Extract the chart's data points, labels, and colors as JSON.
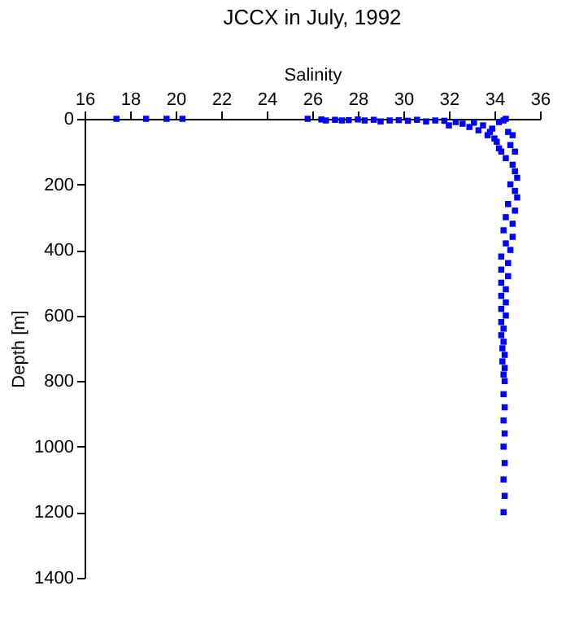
{
  "chart_data": {
    "type": "scatter",
    "title": "JCCX in July, 1992",
    "xlabel": "Salinity",
    "ylabel": "Depth [m]",
    "xlim": [
      16,
      36
    ],
    "xticks": [
      16,
      18,
      20,
      22,
      24,
      26,
      28,
      30,
      32,
      34,
      36
    ],
    "ylim": [
      1400,
      0
    ],
    "yticks": [
      0,
      200,
      400,
      600,
      800,
      1000,
      1200,
      1400
    ],
    "grid": false,
    "marker": "square",
    "series": [
      {
        "color": "#0000ff",
        "x": [
          17.4,
          18.7,
          19.6,
          20.3,
          25.8,
          26.4,
          26.6,
          27.0,
          27.3,
          27.6,
          28.0,
          28.3,
          28.7,
          29.0,
          29.4,
          29.8,
          30.2,
          30.6,
          31.0,
          31.4,
          31.8,
          32.0,
          32.3,
          32.6,
          32.9,
          33.1,
          33.3,
          33.5,
          33.7,
          33.9,
          34.1,
          34.2,
          34.3,
          34.4,
          34.5,
          33.8,
          34.0,
          34.2,
          34.6,
          34.8,
          34.7,
          34.9,
          34.5,
          34.8,
          34.9,
          35.0,
          34.7,
          34.9,
          35.0,
          34.6,
          34.9,
          34.5,
          34.8,
          34.4,
          34.8,
          34.5,
          34.7,
          34.3,
          34.6,
          34.3,
          34.6,
          34.3,
          34.5,
          34.3,
          34.5,
          34.3,
          34.5,
          34.3,
          34.4,
          34.3,
          34.4,
          34.35,
          34.45,
          34.35,
          34.45,
          34.4,
          34.45,
          34.4,
          34.45,
          34.4,
          34.45,
          34.4,
          34.45,
          34.4,
          34.45,
          34.4
        ],
        "values": [
          0,
          0,
          0,
          0,
          0,
          2,
          5,
          3,
          5,
          4,
          2,
          5,
          3,
          8,
          5,
          4,
          6,
          3,
          8,
          5,
          6,
          20,
          10,
          15,
          25,
          12,
          35,
          20,
          50,
          30,
          70,
          10,
          100,
          5,
          0,
          40,
          60,
          90,
          40,
          50,
          80,
          100,
          120,
          140,
          160,
          180,
          200,
          220,
          240,
          260,
          280,
          300,
          320,
          340,
          360,
          380,
          400,
          420,
          440,
          460,
          480,
          500,
          520,
          540,
          560,
          580,
          600,
          620,
          640,
          660,
          680,
          700,
          720,
          740,
          760,
          780,
          800,
          840,
          880,
          920,
          960,
          1000,
          1050,
          1100,
          1150,
          1200
        ]
      }
    ]
  }
}
